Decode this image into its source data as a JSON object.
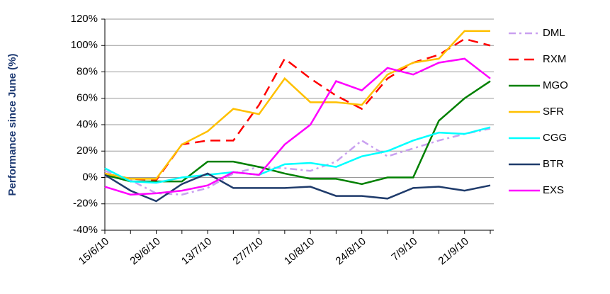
{
  "chart_data": {
    "type": "line",
    "y_label": "Performance since June (%)",
    "categories": [
      "15/6/10",
      null,
      "29/6/10",
      null,
      "13/7/10",
      null,
      "27/7/10",
      null,
      "10/8/10",
      null,
      "24/8/10",
      null,
      "7/9/10",
      null,
      "21/9/10",
      null
    ],
    "ylim": [
      -40,
      120
    ],
    "yticks": [
      {
        "value": -40,
        "label": "-40%"
      },
      {
        "value": -20,
        "label": "-20%"
      },
      {
        "value": 0,
        "label": "0%"
      },
      {
        "value": 20,
        "label": "20%"
      },
      {
        "value": 40,
        "label": "40%"
      },
      {
        "value": 60,
        "label": "60%"
      },
      {
        "value": 80,
        "label": "80%"
      },
      {
        "value": 100,
        "label": "100%"
      },
      {
        "value": 120,
        "label": "120%"
      }
    ],
    "grid": true,
    "legend": "right",
    "series": [
      {
        "name": "DML",
        "color": "#c9a0f0",
        "dash": "dashdot",
        "values": [
          5,
          -2,
          -12,
          -13,
          -8,
          3,
          8,
          7,
          5,
          12,
          28,
          16,
          22,
          28,
          33,
          37
        ]
      },
      {
        "name": "RXM",
        "color": "#ff0000",
        "dash": "dash",
        "values": [
          3,
          -1,
          -2,
          25,
          28,
          28,
          55,
          90,
          75,
          62,
          52,
          75,
          87,
          93,
          105,
          100
        ]
      },
      {
        "name": "MGO",
        "color": "#008000",
        "dash": "solid",
        "values": [
          2,
          -3,
          -3,
          -3,
          12,
          12,
          8,
          3,
          -1,
          -1,
          -5,
          0,
          0,
          43,
          60,
          73
        ]
      },
      {
        "name": "SFR",
        "color": "#ffc000",
        "dash": "solid",
        "values": [
          3,
          -1,
          -1,
          25,
          35,
          52,
          48,
          75,
          57,
          57,
          55,
          78,
          87,
          90,
          111,
          111
        ]
      },
      {
        "name": "CGG",
        "color": "#00ffff",
        "dash": "solid",
        "values": [
          7,
          -3,
          -4,
          0,
          2,
          4,
          2,
          10,
          11,
          8,
          16,
          20,
          28,
          34,
          33,
          38
        ]
      },
      {
        "name": "BTR",
        "color": "#1f3b6b",
        "dash": "solid",
        "values": [
          2,
          -10,
          -18,
          -5,
          3,
          -8,
          -8,
          -8,
          -7,
          -14,
          -14,
          -16,
          -8,
          -7,
          -10,
          -6
        ]
      },
      {
        "name": "EXS",
        "color": "#ff00ff",
        "dash": "solid",
        "values": [
          -7,
          -13,
          -12,
          -10,
          -6,
          4,
          2,
          25,
          40,
          73,
          66,
          83,
          78,
          87,
          90,
          75
        ]
      }
    ]
  }
}
